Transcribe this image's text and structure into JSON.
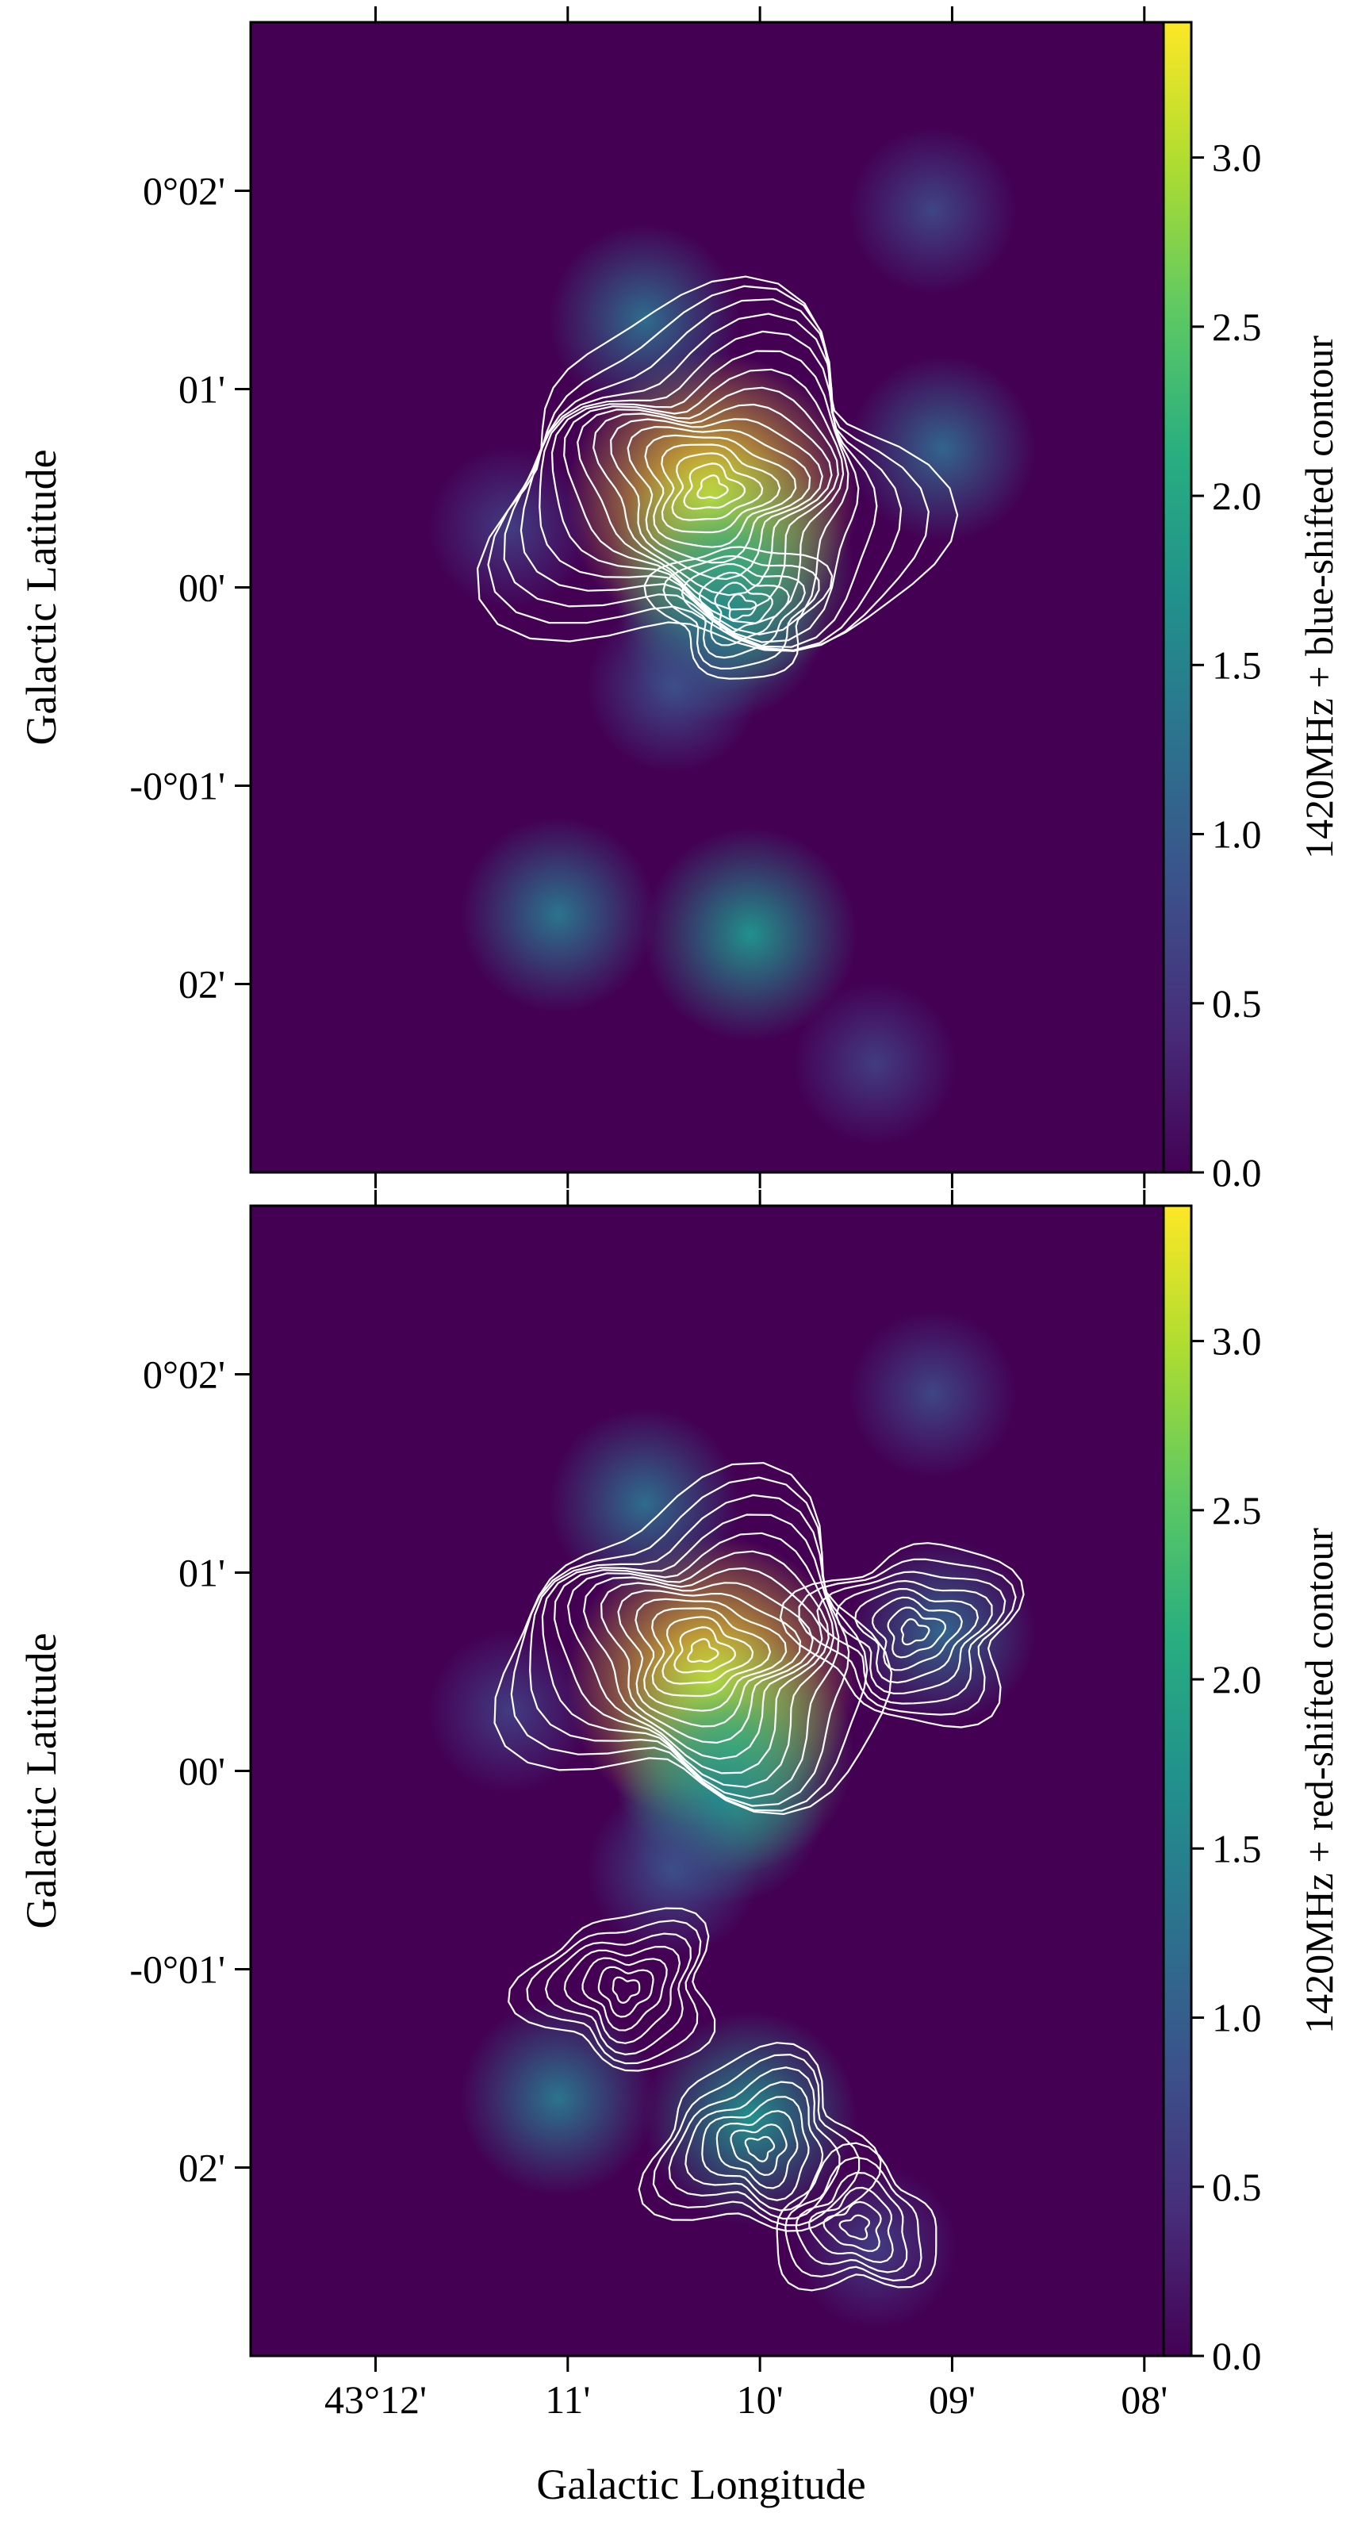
{
  "chart_data": [
    {
      "type": "heatmap",
      "panel": "top",
      "colormap": "viridis",
      "xlabel": "",
      "ylabel": "Galactic Latitude",
      "x_tick_labels": [],
      "y_tick_labels": [
        "0°02'",
        "01'",
        "00'",
        "-0°01'",
        "02'"
      ],
      "x_ticks_arcmin": [
        -12,
        -11,
        -10,
        -9,
        -8
      ],
      "y_ticks_arcmin": [
        2,
        1,
        0,
        -1,
        -2
      ],
      "xlim_arcmin": [
        -12.65,
        -7.9
      ],
      "ylim_arcmin": [
        -2.95,
        2.85
      ],
      "colorbar": {
        "label": "1420MHz + blue-shifted contour",
        "range": [
          0,
          3.4
        ],
        "tick_values": [
          0.0,
          0.5,
          1.0,
          1.5,
          2.0,
          2.5,
          3.0
        ],
        "tick_labels": [
          "0.0",
          "0.5",
          "1.0",
          "1.5",
          "2.0",
          "2.5",
          "3.0"
        ]
      },
      "emission_peaks": [
        {
          "l_arcmin": -10.25,
          "b_arcmin": 0.45,
          "value": 3.4
        },
        {
          "l_arcmin": -10.15,
          "b_arcmin": 0.1,
          "value": 2.4
        },
        {
          "l_arcmin": -10.2,
          "b_arcmin": -0.15,
          "value": 1.6
        },
        {
          "l_arcmin": -10.45,
          "b_arcmin": -0.5,
          "value": 0.8
        },
        {
          "l_arcmin": -10.6,
          "b_arcmin": 1.35,
          "value": 1.2
        },
        {
          "l_arcmin": -9.05,
          "b_arcmin": 0.7,
          "value": 1.1
        },
        {
          "l_arcmin": -9.1,
          "b_arcmin": 1.9,
          "value": 0.7
        },
        {
          "l_arcmin": -11.3,
          "b_arcmin": 0.3,
          "value": 0.6
        },
        {
          "l_arcmin": -11.05,
          "b_arcmin": -1.65,
          "value": 1.3
        },
        {
          "l_arcmin": -10.05,
          "b_arcmin": -1.75,
          "value": 1.7
        },
        {
          "l_arcmin": -9.4,
          "b_arcmin": -2.4,
          "value": 0.6
        }
      ],
      "contour_color": "#ffffff",
      "contour_peaks": [
        {
          "l_arcmin": -10.25,
          "b_arcmin": 0.5,
          "levels": 16
        },
        {
          "l_arcmin": -10.1,
          "b_arcmin": -0.1,
          "levels": 6
        }
      ]
    },
    {
      "type": "heatmap",
      "panel": "bottom",
      "colormap": "viridis",
      "xlabel": "Galactic Longitude",
      "ylabel": "Galactic Latitude",
      "x_tick_labels": [
        "43°12'",
        "11'",
        "10'",
        "09'",
        "08'"
      ],
      "y_tick_labels": [
        "0°02'",
        "01'",
        "00'",
        "-0°01'",
        "02'"
      ],
      "x_ticks_arcmin": [
        -12,
        -11,
        -10,
        -9,
        -8
      ],
      "y_ticks_arcmin": [
        2,
        1,
        0,
        -1,
        -2
      ],
      "xlim_arcmin": [
        -12.65,
        -7.9
      ],
      "ylim_arcmin": [
        -2.95,
        2.85
      ],
      "colorbar": {
        "label": "1420MHz + red-shifted contour",
        "range": [
          0,
          3.4
        ],
        "tick_values": [
          0.0,
          0.5,
          1.0,
          1.5,
          2.0,
          2.5,
          3.0
        ],
        "tick_labels": [
          "0.0",
          "0.5",
          "1.0",
          "1.5",
          "2.0",
          "2.5",
          "3.0"
        ]
      },
      "emission_peaks": [
        {
          "l_arcmin": -10.25,
          "b_arcmin": 0.45,
          "value": 3.4
        },
        {
          "l_arcmin": -10.15,
          "b_arcmin": 0.1,
          "value": 2.4
        },
        {
          "l_arcmin": -10.2,
          "b_arcmin": -0.15,
          "value": 1.6
        },
        {
          "l_arcmin": -10.45,
          "b_arcmin": -0.5,
          "value": 0.8
        },
        {
          "l_arcmin": -10.6,
          "b_arcmin": 1.35,
          "value": 1.2
        },
        {
          "l_arcmin": -9.05,
          "b_arcmin": 0.7,
          "value": 1.1
        },
        {
          "l_arcmin": -9.1,
          "b_arcmin": 1.9,
          "value": 0.7
        },
        {
          "l_arcmin": -11.3,
          "b_arcmin": 0.3,
          "value": 0.6
        },
        {
          "l_arcmin": -11.05,
          "b_arcmin": -1.65,
          "value": 1.3
        },
        {
          "l_arcmin": -10.05,
          "b_arcmin": -1.75,
          "value": 1.7
        },
        {
          "l_arcmin": -9.4,
          "b_arcmin": -2.4,
          "value": 0.6
        }
      ],
      "contour_color": "#ffffff",
      "contour_peaks": [
        {
          "l_arcmin": -10.3,
          "b_arcmin": 0.6,
          "levels": 14
        },
        {
          "l_arcmin": -9.2,
          "b_arcmin": 0.7,
          "levels": 8
        },
        {
          "l_arcmin": -10.7,
          "b_arcmin": -1.1,
          "levels": 7
        },
        {
          "l_arcmin": -10.0,
          "b_arcmin": -1.9,
          "levels": 8
        },
        {
          "l_arcmin": -9.5,
          "b_arcmin": -2.3,
          "levels": 6
        }
      ]
    }
  ]
}
